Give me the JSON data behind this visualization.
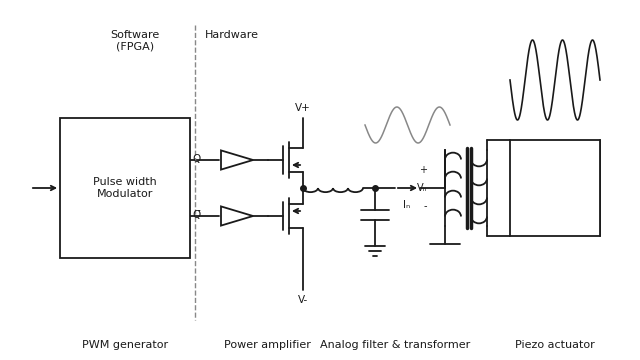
{
  "bg_color": "#ffffff",
  "line_color": "#1a1a1a",
  "labels": {
    "software": "Software\n(FPGA)",
    "hardware": "Hardware",
    "pwm": "PWM generator",
    "amp": "Power amplifier",
    "filter": "Analog filter & transformer",
    "piezo": "Piezo actuator",
    "pwm_box": "Pulse width\nModulator",
    "Q": "Q",
    "Qbar": "Q̅",
    "Vplus": "V+",
    "Vminus": "V-",
    "Ip": "Iₙ",
    "Vp_plus": "+",
    "Vp": "Vₙ",
    "Vp_minus": "-"
  },
  "fig_w": 6.4,
  "fig_h": 3.6,
  "dpi": 100,
  "lw": 1.3,
  "gray_sine": "#888888"
}
